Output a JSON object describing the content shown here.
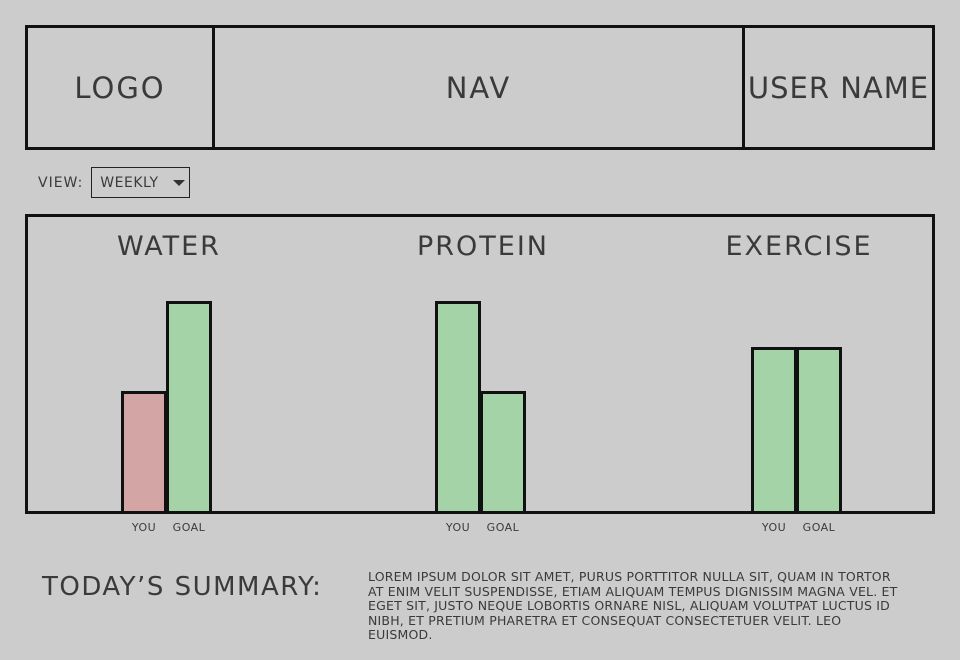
{
  "header": {
    "logo": "LOGO",
    "nav": "NAV",
    "user_name": "USER NAME"
  },
  "view": {
    "label": "VIEW:",
    "selected": "WEEKLY"
  },
  "chart_data": {
    "type": "bar",
    "groups": [
      "WATER",
      "PROTEIN",
      "EXERCISE"
    ],
    "categories": [
      "YOU",
      "GOAL"
    ],
    "series": [
      {
        "group": "WATER",
        "you": 0.57,
        "goal": 1.0
      },
      {
        "group": "PROTEIN",
        "you": 1.0,
        "goal": 0.57
      },
      {
        "group": "EXERCISE",
        "you": 0.78,
        "goal": 0.78
      }
    ],
    "colors": {
      "below_goal": "#d4a5a5",
      "at_goal": "#a5d3a8"
    }
  },
  "summary": {
    "title": "TODAY’S SUMMARY:",
    "text": "LOREM IPSUM DOLOR SIT AMET, PURUS PORTTITOR NULLA SIT, QUAM IN TORTOR AT ENIM VELIT SUSPENDISSE, ETIAM ALIQUAM TEMPUS DIGNISSIM MAGNA VEL. ET EGET SIT, JUSTO NEQUE LOBORTIS ORNARE NISL, ALIQUAM VOLUTPAT LUCTUS ID NIBH, ET PRETIUM PHARETRA ET CONSEQUAT CONSECTETUER VELIT. LEO EUISMOD."
  }
}
